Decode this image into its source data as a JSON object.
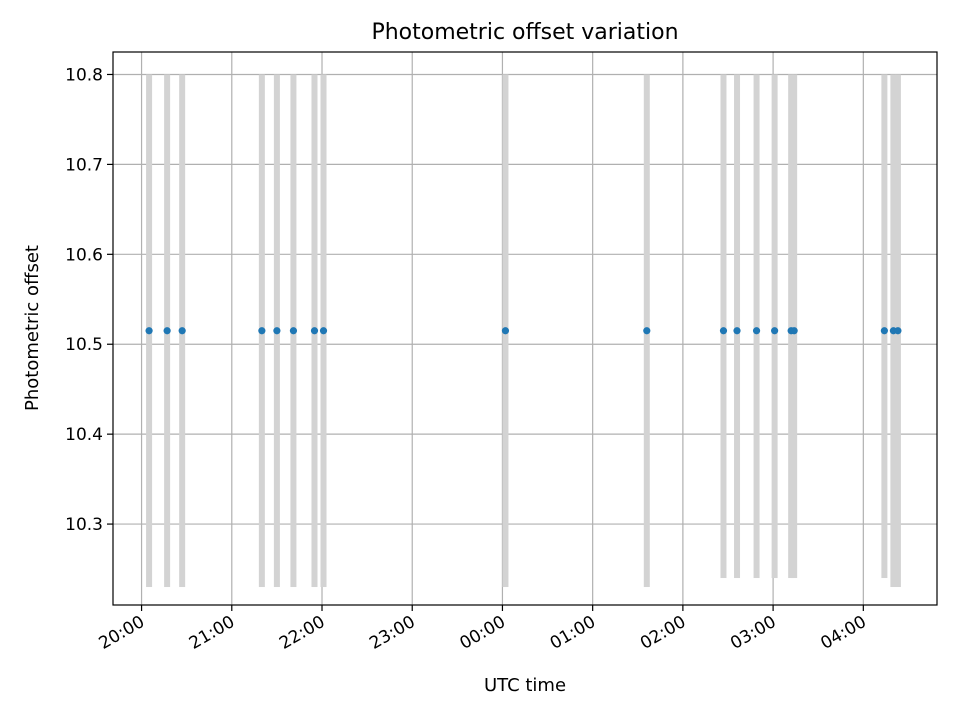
{
  "chart_data": {
    "type": "scatter",
    "title": "Photometric offset variation",
    "xlabel": "UTC time",
    "ylabel": "Photometric offset",
    "x_axis": "time",
    "ylim": [
      10.21,
      10.825
    ],
    "xlim": [
      "19:41",
      "04:49"
    ],
    "grid": true,
    "xticks": [
      "20:00",
      "21:00",
      "22:00",
      "23:00",
      "00:00",
      "01:00",
      "02:00",
      "03:00",
      "04:00"
    ],
    "yticks": [
      "10.3",
      "10.4",
      "10.5",
      "10.6",
      "10.7",
      "10.8"
    ],
    "series": [
      {
        "marker_color": "#1f77b4",
        "x": [
          "20:05",
          "20:17",
          "20:27",
          "21:20",
          "21:30",
          "21:41",
          "21:55",
          "22:01",
          "00:02",
          "01:36",
          "02:27",
          "02:36",
          "02:49",
          "03:01",
          "03:12",
          "03:14",
          "04:14",
          "04:20",
          "04:23"
        ],
        "y": [
          10.515,
          10.515,
          10.515,
          10.515,
          10.515,
          10.515,
          10.515,
          10.515,
          10.515,
          10.515,
          10.515,
          10.515,
          10.515,
          10.515,
          10.515,
          10.515,
          10.515,
          10.515,
          10.515
        ]
      }
    ],
    "vertical_bands": {
      "color": "#d3d3d3",
      "y_range": [
        10.23,
        10.8
      ],
      "bars": [
        {
          "x": "20:05",
          "y_range": [
            10.23,
            10.8
          ]
        },
        {
          "x": "20:17",
          "y_range": [
            10.23,
            10.8
          ]
        },
        {
          "x": "20:27",
          "y_range": [
            10.23,
            10.8
          ]
        },
        {
          "x": "21:20",
          "y_range": [
            10.23,
            10.8
          ]
        },
        {
          "x": "21:30",
          "y_range": [
            10.23,
            10.8
          ]
        },
        {
          "x": "21:41",
          "y_range": [
            10.23,
            10.8
          ]
        },
        {
          "x": "21:55",
          "y_range": [
            10.23,
            10.8
          ]
        },
        {
          "x": "22:01",
          "y_range": [
            10.23,
            10.8
          ]
        },
        {
          "x": "00:02",
          "y_range": [
            10.23,
            10.8
          ]
        },
        {
          "x": "01:36",
          "y_range": [
            10.23,
            10.8
          ]
        },
        {
          "x": "02:27",
          "y_range": [
            10.24,
            10.8
          ]
        },
        {
          "x": "02:36",
          "y_range": [
            10.24,
            10.8
          ]
        },
        {
          "x": "02:49",
          "y_range": [
            10.24,
            10.8
          ]
        },
        {
          "x": "03:01",
          "y_range": [
            10.24,
            10.8
          ]
        },
        {
          "x": "03:12",
          "y_range": [
            10.24,
            10.8
          ]
        },
        {
          "x": "03:14",
          "y_range": [
            10.24,
            10.8
          ]
        },
        {
          "x": "04:14",
          "y_range": [
            10.24,
            10.8
          ]
        },
        {
          "x": "04:20",
          "y_range": [
            10.23,
            10.8
          ]
        },
        {
          "x": "04:23",
          "y_range": [
            10.23,
            10.8
          ]
        }
      ]
    }
  }
}
